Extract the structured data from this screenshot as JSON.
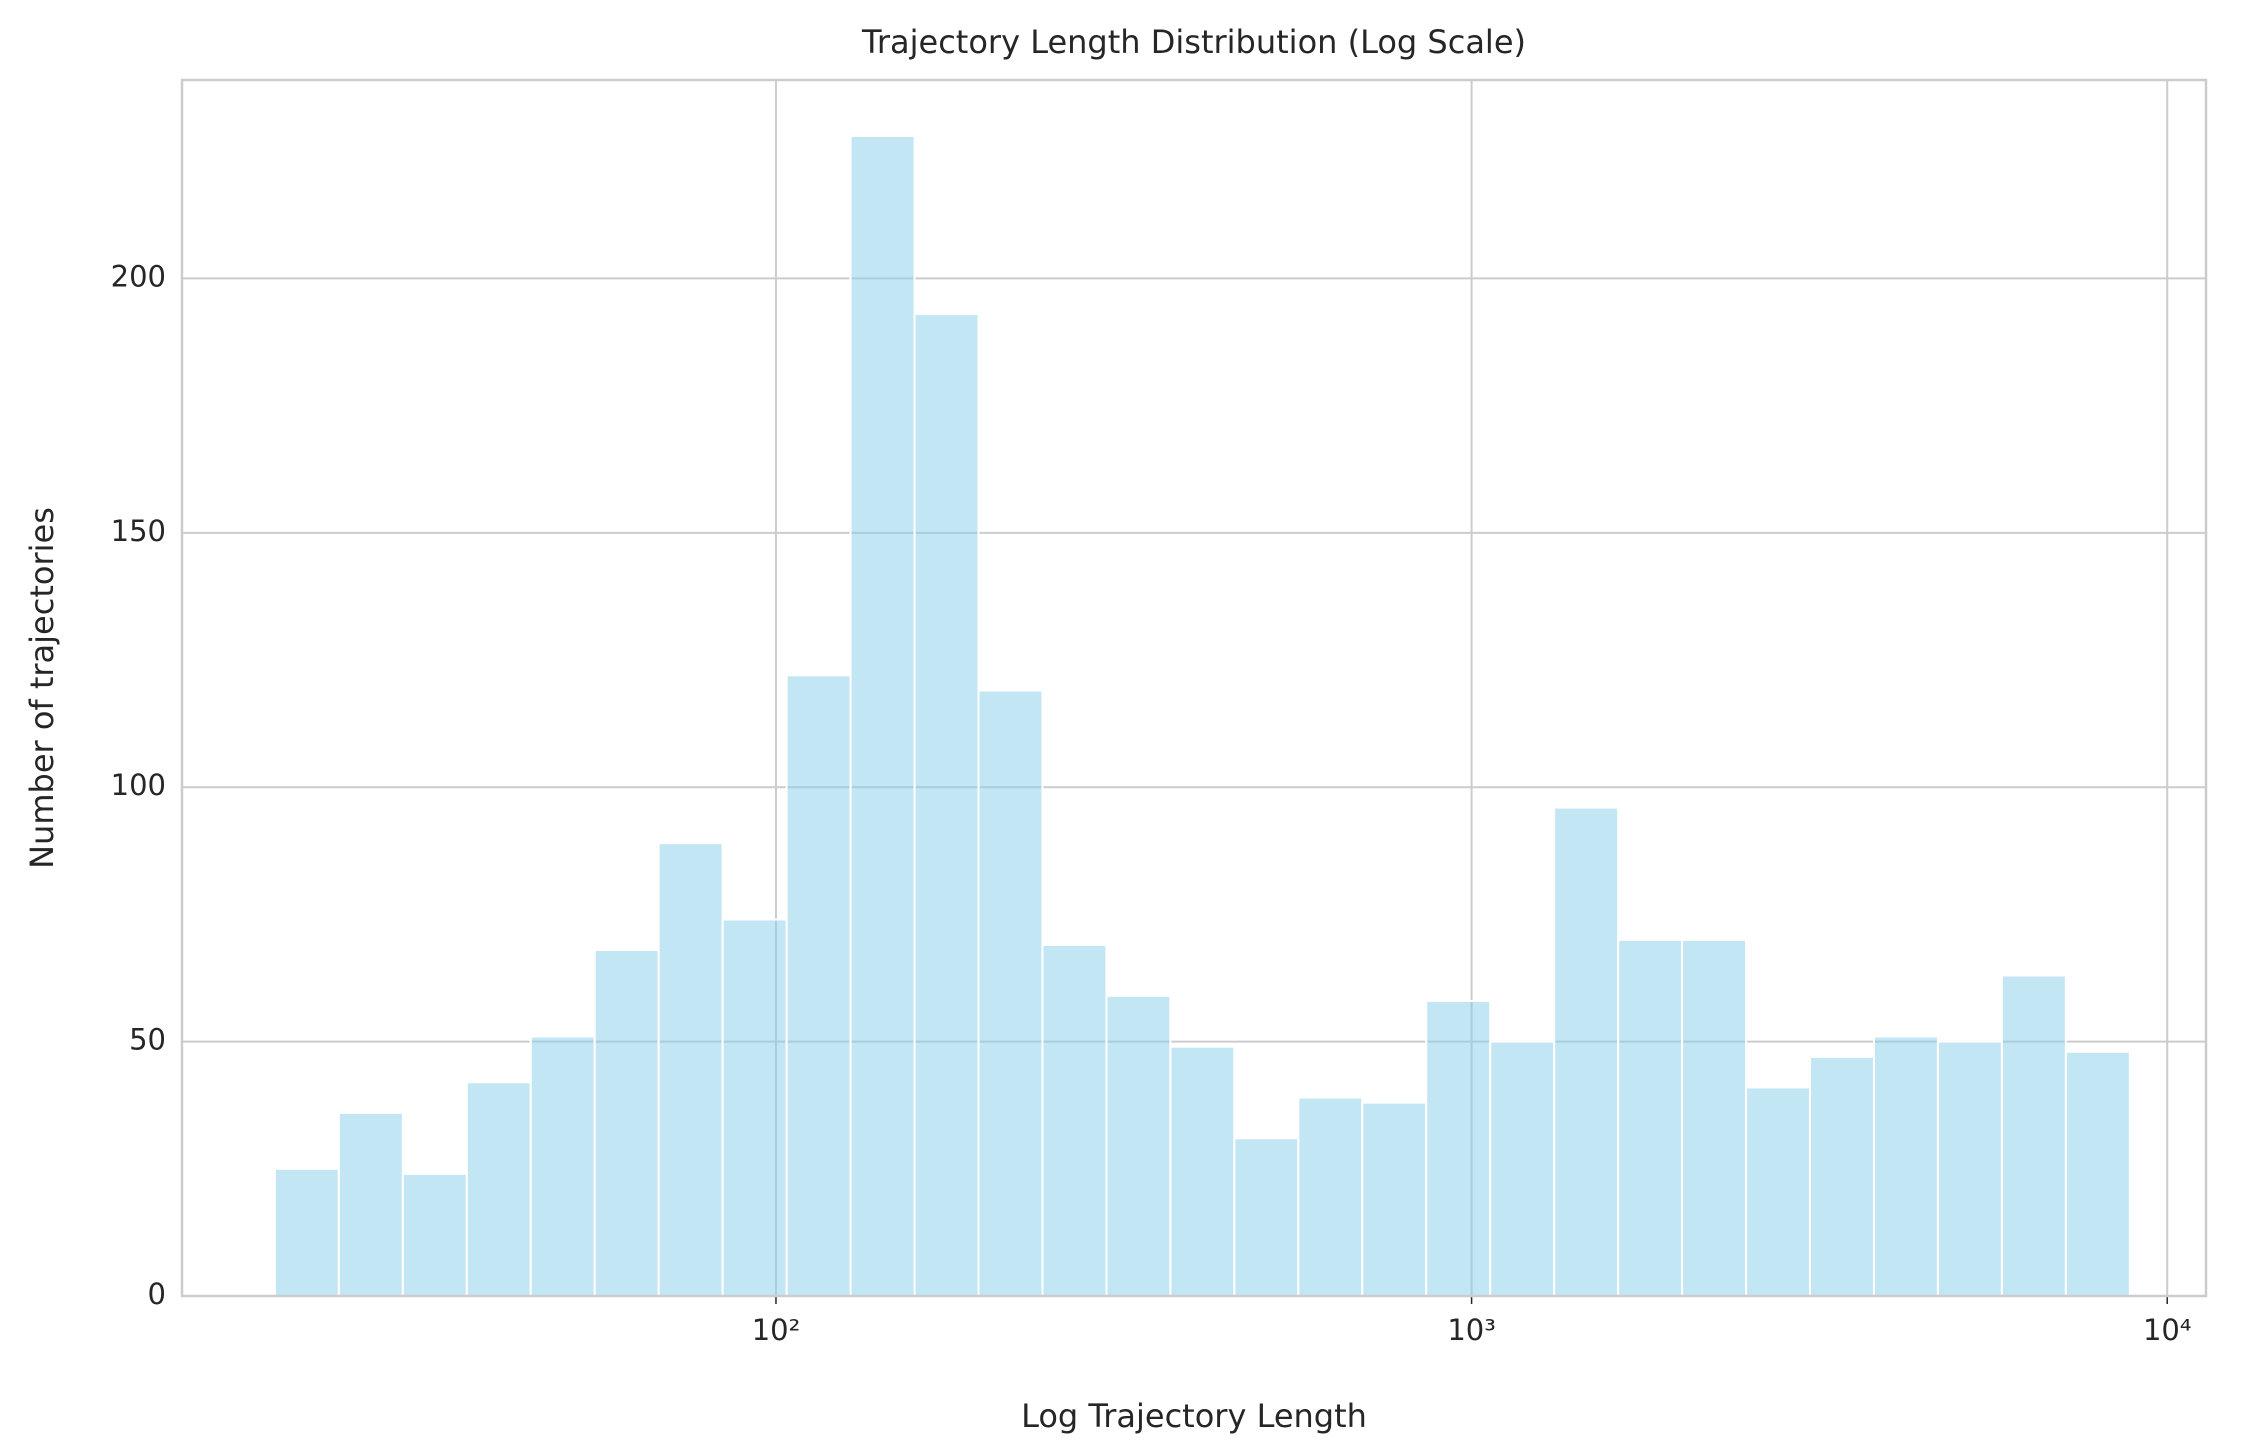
{
  "chart_data": {
    "type": "histogram",
    "title": "Trajectory Length Distribution (Log Scale)",
    "xlabel": "Log Trajectory Length",
    "ylabel": "Number of trajectories",
    "bins": [
      19.04,
      23.53,
      29.08,
      35.94,
      44.41,
      54.88,
      67.82,
      83.81,
      103.6,
      128.0,
      158.2,
      195.5,
      241.6,
      298.6,
      369.0,
      456.0,
      563.5,
      696.4,
      860.6,
      1063.6,
      1314.3,
      1624.3,
      2007.2,
      2480.6,
      3065.5,
      3788.4,
      4681.7,
      5785.7,
      7150,
      8836
    ],
    "values": [
      25,
      36,
      24,
      42,
      51,
      68,
      89,
      74,
      122,
      228,
      193,
      119,
      69,
      59,
      49,
      31,
      39,
      38,
      58,
      50,
      96,
      70,
      70,
      41,
      47,
      51,
      50,
      63,
      48
    ],
    "color": "#87ceeb",
    "xscale": "log",
    "xlim": [
      14,
      11370
    ],
    "ylim": [
      0,
      239
    ],
    "xticks": [
      {
        "value": 100,
        "label": "10²"
      },
      {
        "value": 1000,
        "label": "10³"
      },
      {
        "value": 10000,
        "label": "10⁴"
      }
    ],
    "yticks": [
      0,
      50,
      100,
      150,
      200
    ],
    "grid": true
  }
}
